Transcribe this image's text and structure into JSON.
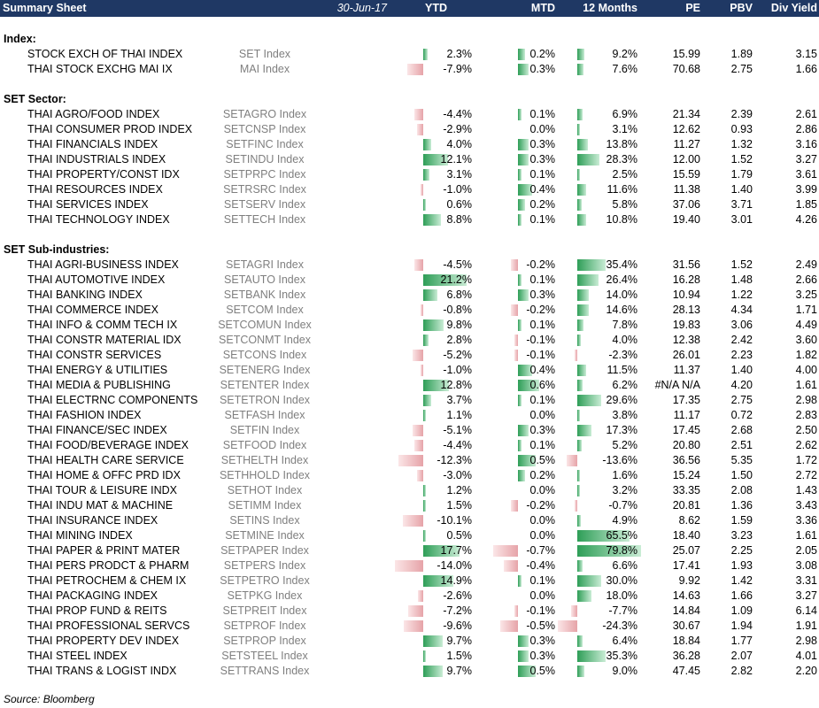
{
  "header": {
    "title": "Summary Sheet",
    "date": "30-Jun-17",
    "ytd": "YTD",
    "mtd": "MTD",
    "m12": "12 Months",
    "pe": "PE",
    "pbv": "PBV",
    "div_yield": "Div Yield"
  },
  "colors": {
    "header_bg": "#1f3864",
    "positive_bar": "#2e9e57",
    "negative_bar": "#e6a3a8"
  },
  "sections": [
    {
      "title": "Index:",
      "rows": [
        {
          "name": "STOCK EXCH OF THAI INDEX",
          "ticker": "SET Index",
          "ytd": "2.3%",
          "mtd": "0.2%",
          "m12": "9.2%",
          "pe": "15.99",
          "pbv": "1.89",
          "dy": "3.15"
        },
        {
          "name": "THAI STOCK EXCHG MAI IX",
          "ticker": "MAI Index",
          "ytd": "-7.9%",
          "mtd": "0.3%",
          "m12": "7.6%",
          "pe": "70.68",
          "pbv": "2.75",
          "dy": "1.66"
        }
      ]
    },
    {
      "title": "SET Sector:",
      "rows": [
        {
          "name": "THAI AGRO/FOOD INDEX",
          "ticker": "SETAGRO Index",
          "ytd": "-4.4%",
          "mtd": "0.1%",
          "m12": "6.9%",
          "pe": "21.34",
          "pbv": "2.39",
          "dy": "2.61"
        },
        {
          "name": "THAI CONSUMER PROD INDEX",
          "ticker": "SETCNSP Index",
          "ytd": "-2.9%",
          "mtd": "0.0%",
          "m12": "3.1%",
          "pe": "12.62",
          "pbv": "0.93",
          "dy": "2.86"
        },
        {
          "name": "THAI FINANCIALS INDEX",
          "ticker": "SETFINC Index",
          "ytd": "4.0%",
          "mtd": "0.3%",
          "m12": "13.8%",
          "pe": "11.27",
          "pbv": "1.32",
          "dy": "3.16"
        },
        {
          "name": "THAI INDUSTRIALS INDEX",
          "ticker": "SETINDU Index",
          "ytd": "12.1%",
          "mtd": "0.3%",
          "m12": "28.3%",
          "pe": "12.00",
          "pbv": "1.52",
          "dy": "3.27"
        },
        {
          "name": "THAI PROPERTY/CONST IDX",
          "ticker": "SETPRPC Index",
          "ytd": "3.1%",
          "mtd": "0.1%",
          "m12": "2.5%",
          "pe": "15.59",
          "pbv": "1.79",
          "dy": "3.61"
        },
        {
          "name": "THAI RESOURCES INDEX",
          "ticker": "SETRSRC Index",
          "ytd": "-1.0%",
          "mtd": "0.4%",
          "m12": "11.6%",
          "pe": "11.38",
          "pbv": "1.40",
          "dy": "3.99"
        },
        {
          "name": "THAI SERVICES INDEX",
          "ticker": "SETSERV Index",
          "ytd": "0.6%",
          "mtd": "0.2%",
          "m12": "5.8%",
          "pe": "37.06",
          "pbv": "3.71",
          "dy": "1.85"
        },
        {
          "name": "THAI TECHNOLOGY INDEX",
          "ticker": "SETTECH Index",
          "ytd": "8.8%",
          "mtd": "0.1%",
          "m12": "10.8%",
          "pe": "19.40",
          "pbv": "3.01",
          "dy": "4.26"
        }
      ]
    },
    {
      "title": "SET Sub-industries:",
      "rows": [
        {
          "name": "THAI AGRI-BUSINESS INDEX",
          "ticker": "SETAGRI Index",
          "ytd": "-4.5%",
          "mtd": "-0.2%",
          "m12": "35.4%",
          "pe": "31.56",
          "pbv": "1.52",
          "dy": "2.49"
        },
        {
          "name": "THAI AUTOMOTIVE INDEX",
          "ticker": "SETAUTO Index",
          "ytd": "21.2%",
          "mtd": "0.1%",
          "m12": "26.4%",
          "pe": "16.28",
          "pbv": "1.48",
          "dy": "2.66"
        },
        {
          "name": "THAI BANKING INDEX",
          "ticker": "SETBANK Index",
          "ytd": "6.8%",
          "mtd": "0.3%",
          "m12": "14.0%",
          "pe": "10.94",
          "pbv": "1.22",
          "dy": "3.25"
        },
        {
          "name": "THAI COMMERCE INDEX",
          "ticker": "SETCOM Index",
          "ytd": "-0.8%",
          "mtd": "-0.2%",
          "m12": "14.6%",
          "pe": "28.13",
          "pbv": "4.34",
          "dy": "1.71"
        },
        {
          "name": "THAI INFO & COMM TECH IX",
          "ticker": "SETCOMUN Index",
          "ytd": "9.8%",
          "mtd": "0.1%",
          "m12": "7.8%",
          "pe": "19.83",
          "pbv": "3.06",
          "dy": "4.49"
        },
        {
          "name": "THAI CONSTR MATERIAL IDX",
          "ticker": "SETCONMT Index",
          "ytd": "2.8%",
          "mtd": "-0.1%",
          "m12": "4.0%",
          "pe": "12.38",
          "pbv": "2.42",
          "dy": "3.60"
        },
        {
          "name": "THAI CONSTR SERVICES",
          "ticker": "SETCONS Index",
          "ytd": "-5.2%",
          "mtd": "-0.1%",
          "m12": "-2.3%",
          "pe": "26.01",
          "pbv": "2.23",
          "dy": "1.82"
        },
        {
          "name": "THAI ENERGY & UTILITIES",
          "ticker": "SETENERG Index",
          "ytd": "-1.0%",
          "mtd": "0.4%",
          "m12": "11.5%",
          "pe": "11.37",
          "pbv": "1.40",
          "dy": "4.00"
        },
        {
          "name": "THAI MEDIA & PUBLISHING",
          "ticker": "SETENTER Index",
          "ytd": "12.8%",
          "mtd": "0.6%",
          "m12": "6.2%",
          "pe": "#N/A N/A",
          "pbv": "4.20",
          "dy": "1.61"
        },
        {
          "name": "THAI ELECTRNC COMPONENTS",
          "ticker": "SETETRON Index",
          "ytd": "3.7%",
          "mtd": "0.1%",
          "m12": "29.6%",
          "pe": "17.35",
          "pbv": "2.75",
          "dy": "2.98"
        },
        {
          "name": "THAI FASHION INDEX",
          "ticker": "SETFASH Index",
          "ytd": "1.1%",
          "mtd": "0.0%",
          "m12": "3.8%",
          "pe": "11.17",
          "pbv": "0.72",
          "dy": "2.83"
        },
        {
          "name": "THAI FINANCE/SEC INDEX",
          "ticker": "SETFIN Index",
          "ytd": "-5.1%",
          "mtd": "0.3%",
          "m12": "17.3%",
          "pe": "17.45",
          "pbv": "2.68",
          "dy": "2.50"
        },
        {
          "name": "THAI FOOD/BEVERAGE INDEX",
          "ticker": "SETFOOD Index",
          "ytd": "-4.4%",
          "mtd": "0.1%",
          "m12": "5.2%",
          "pe": "20.80",
          "pbv": "2.51",
          "dy": "2.62"
        },
        {
          "name": "THAI HEALTH CARE SERVICE",
          "ticker": "SETHELTH Index",
          "ytd": "-12.3%",
          "mtd": "0.5%",
          "m12": "-13.6%",
          "pe": "36.56",
          "pbv": "5.35",
          "dy": "1.72"
        },
        {
          "name": "THAI HOME & OFFC PRD IDX",
          "ticker": "SETHHOLD Index",
          "ytd": "-3.0%",
          "mtd": "0.2%",
          "m12": "1.6%",
          "pe": "15.24",
          "pbv": "1.50",
          "dy": "2.72"
        },
        {
          "name": "THAI TOUR & LEISURE INDX",
          "ticker": "SETHOT Index",
          "ytd": "1.2%",
          "mtd": "0.0%",
          "m12": "3.2%",
          "pe": "33.35",
          "pbv": "2.08",
          "dy": "1.43"
        },
        {
          "name": "THAI INDU MAT & MACHINE",
          "ticker": "SETIMM Index",
          "ytd": "1.5%",
          "mtd": "-0.2%",
          "m12": "-0.7%",
          "pe": "20.81",
          "pbv": "1.36",
          "dy": "3.43"
        },
        {
          "name": "THAI INSURANCE INDEX",
          "ticker": "SETINS Index",
          "ytd": "-10.1%",
          "mtd": "0.0%",
          "m12": "4.9%",
          "pe": "8.62",
          "pbv": "1.59",
          "dy": "3.36"
        },
        {
          "name": "THAI MINING INDEX",
          "ticker": "SETMINE Index",
          "ytd": "0.5%",
          "mtd": "0.0%",
          "m12": "65.5%",
          "pe": "18.40",
          "pbv": "3.23",
          "dy": "1.61"
        },
        {
          "name": "THAI PAPER & PRINT MATER",
          "ticker": "SETPAPER Index",
          "ytd": "17.7%",
          "mtd": "-0.7%",
          "m12": "79.8%",
          "pe": "25.07",
          "pbv": "2.25",
          "dy": "2.05"
        },
        {
          "name": "THAI PERS PRODCT & PHARM",
          "ticker": "SETPERS Index",
          "ytd": "-14.0%",
          "mtd": "-0.4%",
          "m12": "6.6%",
          "pe": "17.41",
          "pbv": "1.93",
          "dy": "3.08"
        },
        {
          "name": "THAI PETROCHEM & CHEM IX",
          "ticker": "SETPETRO Index",
          "ytd": "14.9%",
          "mtd": "0.1%",
          "m12": "30.0%",
          "pe": "9.92",
          "pbv": "1.42",
          "dy": "3.31"
        },
        {
          "name": "THAI PACKAGING INDEX",
          "ticker": "SETPKG Index",
          "ytd": "-2.6%",
          "mtd": "0.0%",
          "m12": "18.0%",
          "pe": "14.63",
          "pbv": "1.66",
          "dy": "3.27"
        },
        {
          "name": "THAI PROP FUND & REITS",
          "ticker": "SETPREIT Index",
          "ytd": "-7.2%",
          "mtd": "-0.1%",
          "m12": "-7.7%",
          "pe": "14.84",
          "pbv": "1.09",
          "dy": "6.14"
        },
        {
          "name": "THAI PROFESSIONAL SERVCS",
          "ticker": "SETPROF Index",
          "ytd": "-9.6%",
          "mtd": "-0.5%",
          "m12": "-24.3%",
          "pe": "30.67",
          "pbv": "1.94",
          "dy": "1.91"
        },
        {
          "name": "THAI PROPERTY DEV INDEX",
          "ticker": "SETPROP Index",
          "ytd": "9.7%",
          "mtd": "0.3%",
          "m12": "6.4%",
          "pe": "18.84",
          "pbv": "1.77",
          "dy": "2.98"
        },
        {
          "name": "THAI STEEL INDEX",
          "ticker": "SETSTEEL Index",
          "ytd": "1.5%",
          "mtd": "0.3%",
          "m12": "35.3%",
          "pe": "36.28",
          "pbv": "2.07",
          "dy": "4.01"
        },
        {
          "name": "THAI TRANS & LOGIST INDX",
          "ticker": "SETTRANS Index",
          "ytd": "9.7%",
          "mtd": "0.5%",
          "m12": "9.0%",
          "pe": "47.45",
          "pbv": "2.82",
          "dy": "2.20"
        }
      ]
    }
  ],
  "footer": "Source: Bloomberg"
}
